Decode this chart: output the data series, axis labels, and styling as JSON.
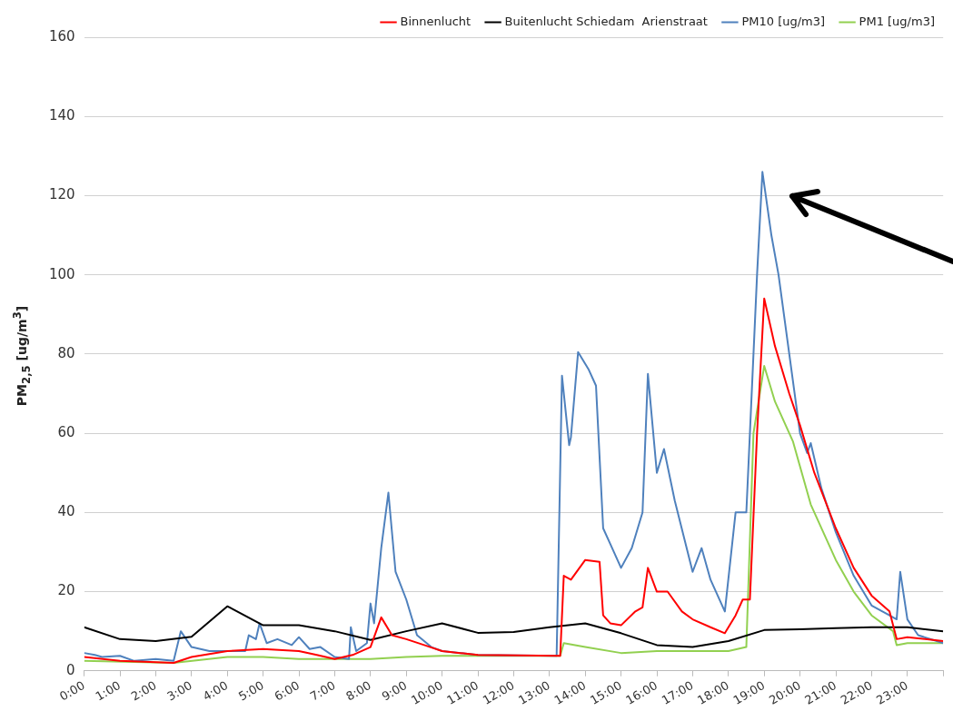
{
  "chart_data": {
    "type": "line",
    "ylabel": "PM$_{2,5}$ [ug/m$^{3}$]",
    "xlim": [
      0,
      24
    ],
    "ylim": [
      0,
      160
    ],
    "yticks": [
      0,
      20,
      40,
      60,
      80,
      100,
      120,
      140,
      160
    ],
    "xticks": [
      {
        "value": 0,
        "label": "0:00"
      },
      {
        "value": 1,
        "label": "1:00"
      },
      {
        "value": 2,
        "label": "2:00"
      },
      {
        "value": 3,
        "label": "3:00"
      },
      {
        "value": 4,
        "label": "4:00"
      },
      {
        "value": 5,
        "label": "5:00"
      },
      {
        "value": 6,
        "label": "6:00"
      },
      {
        "value": 7,
        "label": "7:00"
      },
      {
        "value": 8,
        "label": "8:00"
      },
      {
        "value": 9,
        "label": "9:00"
      },
      {
        "value": 10,
        "label": "10:00"
      },
      {
        "value": 11,
        "label": "11:00"
      },
      {
        "value": 12,
        "label": "12:00"
      },
      {
        "value": 13,
        "label": "13:00"
      },
      {
        "value": 14,
        "label": "14:00"
      },
      {
        "value": 15,
        "label": "15:00"
      },
      {
        "value": 16,
        "label": "16:00"
      },
      {
        "value": 17,
        "label": "17:00"
      },
      {
        "value": 18,
        "label": "18:00"
      },
      {
        "value": 19,
        "label": "19:00"
      },
      {
        "value": 20,
        "label": "20:00"
      },
      {
        "value": 21,
        "label": "21:00"
      },
      {
        "value": 22,
        "label": "22:00"
      },
      {
        "value": 23,
        "label": "23:00"
      },
      {
        "value": 24,
        "label": null
      }
    ],
    "grid": "y",
    "legend": "top",
    "marker": "none",
    "line_style": "solid",
    "series": [
      {
        "name": "Binnenlucht",
        "color": "#ff0000",
        "x": [
          0,
          1,
          2.5,
          3,
          4,
          5,
          6,
          6.5,
          7,
          7.5,
          8,
          8.3,
          8.6,
          9,
          9.5,
          10,
          10.5,
          11,
          13.3,
          13.4,
          13.6,
          14,
          14.4,
          14.5,
          14.7,
          15,
          15.4,
          15.6,
          15.75,
          16,
          16.3,
          16.7,
          17,
          17.5,
          17.9,
          18.2,
          18.4,
          18.6,
          18.8,
          19,
          19.3,
          19.7,
          20,
          20.4,
          21,
          21.5,
          22,
          22.5,
          22.7,
          23,
          24
        ],
        "values": [
          3.5,
          2.5,
          2,
          3.5,
          5,
          5.5,
          5,
          4,
          3,
          4,
          6,
          13.5,
          9,
          8,
          6.5,
          5,
          4.5,
          4,
          3.8,
          24,
          23,
          28,
          27.5,
          14,
          12,
          11.5,
          15,
          16,
          26,
          20,
          20,
          15,
          13,
          11,
          9.5,
          14,
          18,
          18,
          60,
          94,
          82,
          70,
          62,
          50,
          36,
          26,
          19,
          15,
          8,
          8.5,
          7.5
        ]
      },
      {
        "name": "Buitenlucht Schiedam  Arienstraat",
        "color": "#000000",
        "x": [
          0,
          1,
          2,
          3,
          4,
          5,
          6,
          7,
          8,
          9,
          10,
          11,
          12,
          13,
          14,
          15,
          16,
          17,
          18,
          19,
          20,
          21,
          22,
          23,
          24
        ],
        "values": [
          11,
          8,
          7.5,
          8.6,
          16.3,
          11.5,
          11.5,
          10,
          7.8,
          10,
          12,
          9.6,
          9.8,
          11,
          12,
          9.5,
          6.5,
          6,
          7.5,
          10.3,
          10.5,
          10.8,
          11,
          11,
          10
        ]
      },
      {
        "name": "PM10 [ug/m3]",
        "color": "#4f81bd",
        "x": [
          0,
          0.3,
          0.5,
          1,
          1.4,
          2,
          2.5,
          2.7,
          3,
          3.5,
          4,
          4.5,
          4.6,
          4.8,
          4.9,
          5.1,
          5.4,
          5.8,
          6,
          6.3,
          6.6,
          7,
          7.4,
          7.45,
          7.6,
          7.9,
          8,
          8.1,
          8.3,
          8.5,
          8.7,
          9,
          9.3,
          9.7,
          10,
          11,
          13.2,
          13.35,
          13.55,
          13.6,
          13.8,
          14.1,
          14.3,
          14.5,
          14.7,
          15,
          15.3,
          15.6,
          15.75,
          16,
          16.2,
          16.5,
          17,
          17.25,
          17.5,
          17.9,
          18.2,
          18.5,
          18.8,
          18.95,
          19.2,
          19.4,
          19.7,
          20,
          20.2,
          20.3,
          20.6,
          21,
          21.5,
          22,
          22.5,
          22.7,
          22.8,
          23,
          23.3,
          24
        ],
        "values": [
          4.5,
          4,
          3.5,
          3.8,
          2.5,
          3,
          2.5,
          10,
          6,
          5,
          5,
          5,
          9,
          8,
          12,
          7,
          8,
          6.5,
          8.5,
          5.5,
          6,
          3.5,
          3,
          11,
          5,
          7,
          17,
          12,
          31,
          45,
          25,
          18,
          9,
          6,
          5,
          4,
          3.8,
          74.5,
          57,
          59,
          80.5,
          76,
          72,
          36,
          32,
          26,
          31,
          40,
          75,
          50,
          56,
          43,
          25,
          31,
          23,
          15,
          40,
          40,
          100,
          126,
          110,
          100,
          80,
          60,
          55,
          57.5,
          46,
          35,
          24,
          16.5,
          14,
          13,
          25,
          13,
          9,
          7
        ]
      },
      {
        "name": "PM1 [ug/m3]",
        "color": "#92d050",
        "x": [
          0,
          2.5,
          4,
          5,
          6,
          7,
          8,
          9,
          10,
          13.3,
          13.4,
          14,
          15,
          16,
          17,
          18,
          18.5,
          18.7,
          19,
          19.3,
          19.8,
          20.3,
          21,
          21.5,
          22,
          22.6,
          22.7,
          23,
          24
        ],
        "values": [
          2.5,
          2,
          3.5,
          3.5,
          3,
          3,
          3,
          3.5,
          3.8,
          3.8,
          7,
          6,
          4.5,
          5,
          5,
          5,
          6,
          60,
          77,
          68,
          58,
          42,
          28,
          20,
          14,
          10,
          6.5,
          7,
          7
        ]
      }
    ]
  }
}
